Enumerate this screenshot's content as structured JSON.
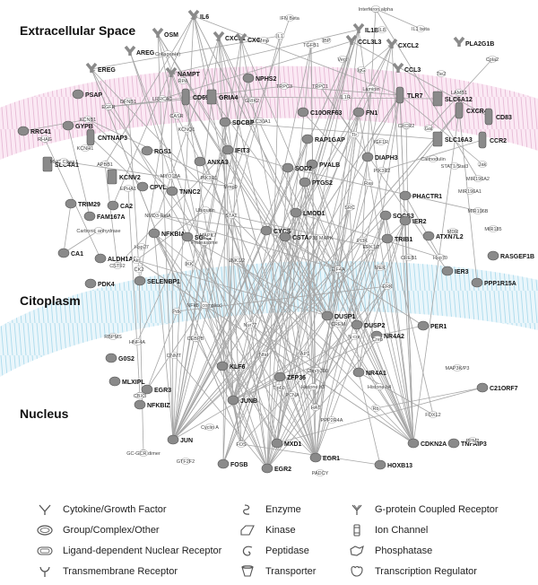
{
  "compartments": {
    "extracellular": "Extracellular Space",
    "cytoplasm": "Citoplasm",
    "nucleus": "Nucleus"
  },
  "legend": [
    {
      "label": "Cytokine/Growth Factor",
      "icon": "cytokine-icon"
    },
    {
      "label": "Enzyme",
      "icon": "enzyme-icon"
    },
    {
      "label": "G-protein Coupled Receptor",
      "icon": "gpcr-icon"
    },
    {
      "label": "Group/Complex/Other",
      "icon": "group-icon"
    },
    {
      "label": "Kinase",
      "icon": "kinase-icon"
    },
    {
      "label": "Ion Channel",
      "icon": "ion-channel-icon"
    },
    {
      "label": "Ligand-dependent Nuclear Receptor",
      "icon": "nuclear-receptor-icon"
    },
    {
      "label": "Peptidase",
      "icon": "peptidase-icon"
    },
    {
      "label": "Phosphatase",
      "icon": "phosphatase-icon"
    },
    {
      "label": "Transmembrane Receptor",
      "icon": "transmembrane-receptor-icon"
    },
    {
      "label": "Transporter",
      "icon": "transporter-icon"
    },
    {
      "label": "Transcription Regulator",
      "icon": "transcription-regulator-icon"
    }
  ],
  "genes": {
    "IL6": "IL6",
    "OSM": "OSM",
    "CXCL1": "CXCL1",
    "CXCL3": "CXCL3",
    "IL1B": "IL1B",
    "CCL3L3": "CCL3L3",
    "CXCL2": "CXCL2",
    "PLA2G1B": "PLA2G1B",
    "AREG": "AREG",
    "EREG": "EREG",
    "NAMPT": "NAMPT",
    "NPHS2": "NPHS2",
    "CCL3": "CCL3",
    "PSAP": "PSAP",
    "CD69": "CD69",
    "GRIA4": "GRIA4",
    "TLR7": "TLR7",
    "SLC6A12": "SLC6A12",
    "C10ORF63": "C10ORF63",
    "FN1": "FN1",
    "CXCR4": "CXCR4",
    "GYPB": "GYPB",
    "CD83": "CD83",
    "RRC41": "RRC41",
    "CNTNAP3": "CNTNAP3",
    "SDCBP": "SDCBP",
    "SLC16A3": "SLC16A3",
    "CCR2": "CCR2",
    "SLC4A1": "SLC4A1",
    "RGS1": "RGS1",
    "IFIT3": "IFIT3",
    "RAP1GAP": "RAP1GAP",
    "PVALB": "PVALB",
    "DIAPH3": "DIAPH3",
    "KCNV2": "KCNV2",
    "ANXA3": "ANXA3",
    "SOD2": "SOD2",
    "CPVL": "CPVL",
    "TNNC2": "TNNC2",
    "PTGS2": "PTGS2",
    "PHACTR1": "PHACTR1",
    "TRIM29": "TRIM29",
    "CA2": "CA2",
    "SOCS3": "SOCS3",
    "FAM167A": "FAM167A",
    "LMOD1": "LMOD1",
    "IER2": "IER2",
    "NFKBIA": "NFKBIA",
    "SGK1": "SGK1",
    "CYCS": "CYCS",
    "CSTA": "CSTA",
    "ATXN7L2": "ATXN7L2",
    "TRIB1": "TRIB1",
    "RASGEF1B": "RASGEF1B",
    "CA1": "CA1",
    "ALDH1A1": "ALDH1A1",
    "IER3": "IER3",
    "PDK4": "PDK4",
    "SELENBP1": "SELENBP1",
    "PPP1R15A": "PPP1R15A",
    "DUSP1": "DUSP1",
    "DUSP2": "DUSP2",
    "PER1": "PER1",
    "NR4A2": "NR4A2",
    "G0S2": "G0S2",
    "KLF6": "KLF6",
    "ZFP36": "ZFP36",
    "MLXIPL": "MLXIPL",
    "NR4A1": "NR4A1",
    "C21ORF7": "C21ORF7",
    "EGR3": "EGR3",
    "JUNB": "JUNB",
    "NFKBIZ": "NFKBIZ",
    "JUN": "JUN",
    "MXD1": "MXD1",
    "EGR1": "EGR1",
    "CDKN2A": "CDKN2A",
    "TNFAIP3": "TNFAIP3",
    "FOSB": "FOSB",
    "EGR2": "EGR2",
    "HOXB13": "HOXB13"
  },
  "molecules": {
    "ifn_beta": "IFN Beta",
    "interferon_alpha": "Interferon alpha",
    "il1": "IL1",
    "tgfb1": "TGFB1",
    "ebp": "IBP",
    "il8": "IL8",
    "il1_beta": "IL1 beta",
    "cpla2": "Cpla2",
    "collagens": "Collagen(s)",
    "mmp": "Mmp",
    "vegf": "Vegf",
    "igg": "IgG",
    "tgf_beta": "TGF beta",
    "trpc3": "TRPC3",
    "trpc1": "TRPC1",
    "tie2": "Tie2",
    "lrrc4c": "LRRC4C",
    "lamb1": "LAMB1",
    "grik2": "GRIK2",
    "casr": "CASR",
    "laminin": "Laminin",
    "il1r": "IL1R",
    "egfr": "EGFR",
    "dfnb1": "DFNB1",
    "rpa": "RPA",
    "kcnb1": "KCNB1",
    "kcnq1": "KCNQ1",
    "kcnh1": "KCNH1",
    "slc30a1": "SLC30A1",
    "tlr": "Tlr",
    "rhag": "RHAG",
    "apbb1": "APBB1",
    "cxcr2": "CXCR2",
    "jak": "Jak",
    "mhc_class_i": "MHC Class I",
    "igf1r": "IGF1R",
    "myo18a": "MYO18A",
    "pik3r1": "PIK3R1",
    "gal": "Gal",
    "calmodulin": "Calmodulin",
    "stat1_ht": "STAT1/Stat3",
    "pik3r2": "PIK3R2",
    "mir196a2": "MIR196A2",
    "mir196a1": "MIR196A1",
    "mir196b": "MIR196B",
    "mir185": "MIR185",
    "ubiquitin": "Ubiquitin",
    "nmd3_rela": "NMD3-RelA",
    "mapk7": "MAPK7",
    "stat": "STAT",
    "mmp9": "Mmp9",
    "ras": "Ras",
    "src": "SRC",
    "carbonic_anhydrase": "Carbonic anhydrase",
    "hsp27": "Hsp27",
    "proteasome": "Proteasome",
    "jnk1_2": "JNK1/2",
    "erk1_2": "ERK1/2",
    "p38_mapk": "P38 MAPK",
    "mdr": "MDR",
    "hsp70": "Hsp70",
    "akt": "Akt",
    "cstf2": "CSTF2",
    "ck2": "CK2",
    "ikk": "IKK",
    "mek": "MEK",
    "erk": "ERK",
    "pi3k": "PI3K",
    "nfkb": "NFkB (complex)",
    "creb": "Creb",
    "ap1": "AP1",
    "ncor": "N-cor",
    "cbp_p300": "Cbp/p300",
    "histone_h3": "Histone h3",
    "histone_h4": "Histone h4",
    "dnmt": "DNMT",
    "rbpms": "RBPMS",
    "hnf4a": "HNF4A",
    "cebpb": "CEBPB",
    "cbx3": "CBX3",
    "tip60": "Tip60",
    "hat": "HAT",
    "ppp2r4a": "PPP2R4A",
    "rb": "Rb",
    "pcna": "PCNA",
    "cyclin_a": "Cyclin A",
    "fos": "FOS",
    "gc_gcr_dimer": "GC-GCR dimer",
    "gtf2f2": "GTF2F2",
    "padcy": "PADCY",
    "foxl2": "FOXL2",
    "mapk3_p3": "MAP3K/P3",
    "ppm2": "PPM2",
    "eif4a": "EIF4A",
    "epha1": "EPHA1",
    "pdk": "Pdk",
    "creb1": "CREB1",
    "crem": "CREM",
    "nfat": "Nfat",
    "nur77": "Nur77"
  }
}
